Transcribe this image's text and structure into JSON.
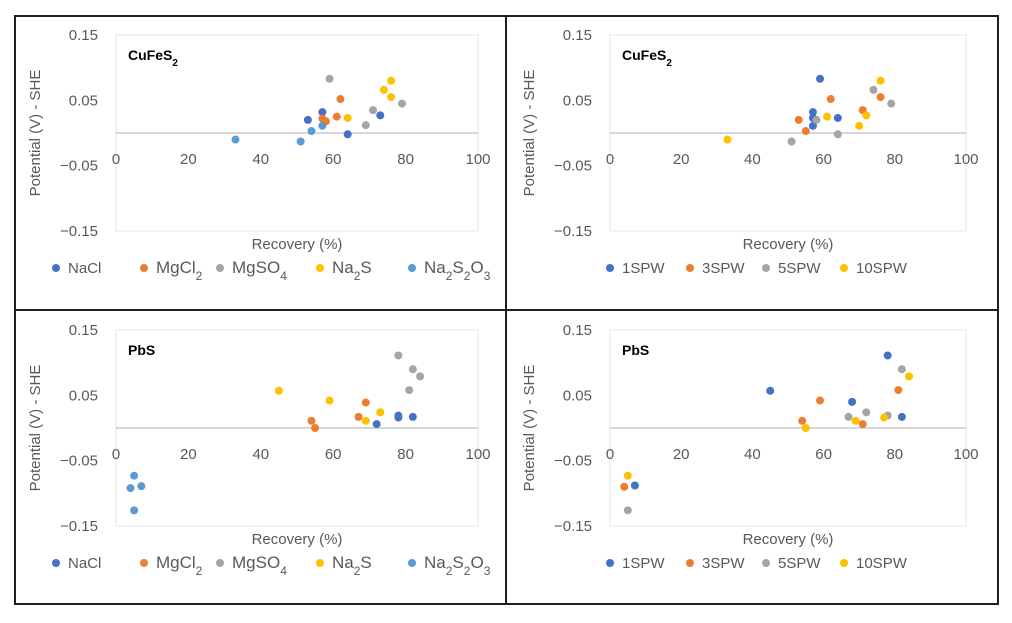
{
  "series_colors": {
    "NaCl": "#4472C4",
    "MgCl2": "#ED7D31",
    "MgSO4": "#A5A5A5",
    "Na2S": "#FFC000",
    "Na2S2O3": "#5B9BD5",
    "1SPW": "#4472C4",
    "3SPW": "#ED7D31",
    "5SPW": "#A5A5A5",
    "10SPW": "#FFC000"
  },
  "chart_data": [
    {
      "type": "scatter",
      "title": "CuFeS2",
      "xlabel": "Recovery (%)",
      "ylabel": "Potential (V) - SHE",
      "xlim": [
        0,
        100
      ],
      "ylim": [
        -0.15,
        0.15
      ],
      "xticks": [
        "0",
        "20",
        "40",
        "60",
        "80",
        "100"
      ],
      "yticks": [
        "0.15",
        "0.05",
        "-0.05",
        "-0.15"
      ],
      "grid": false,
      "legend": "bottom",
      "series": [
        {
          "name": "NaCl",
          "points": [
            [
              53,
              0.02
            ],
            [
              57,
              0.032
            ],
            [
              64,
              -0.002
            ],
            [
              73,
              0.027
            ]
          ]
        },
        {
          "name": "MgCl2",
          "points": [
            [
              57,
              0.022
            ],
            [
              58,
              0.018
            ],
            [
              61,
              0.025
            ],
            [
              62,
              0.052
            ]
          ]
        },
        {
          "name": "MgSO4",
          "points": [
            [
              59,
              0.083
            ],
            [
              69,
              0.012
            ],
            [
              71,
              0.035
            ],
            [
              79,
              0.045
            ]
          ]
        },
        {
          "name": "Na2S",
          "points": [
            [
              64,
              0.023
            ],
            [
              74,
              0.066
            ],
            [
              76,
              0.08
            ],
            [
              76,
              0.055
            ]
          ]
        },
        {
          "name": "Na2S2O3",
          "points": [
            [
              33,
              -0.01
            ],
            [
              51,
              -0.013
            ],
            [
              54,
              0.003
            ],
            [
              57,
              0.011
            ]
          ]
        }
      ]
    },
    {
      "type": "scatter",
      "title": "CuFeS2",
      "xlabel": "Recovery (%)",
      "ylabel": "Potential (V) - SHE",
      "xlim": [
        0,
        100
      ],
      "ylim": [
        -0.15,
        0.15
      ],
      "xticks": [
        "0",
        "20",
        "40",
        "60",
        "80",
        "100"
      ],
      "yticks": [
        "0.15",
        "0.05",
        "-0.05",
        "-0.15"
      ],
      "grid": false,
      "legend": "bottom",
      "series": [
        {
          "name": "1SPW",
          "points": [
            [
              57,
              0.032
            ],
            [
              57,
              0.023
            ],
            [
              57,
              0.011
            ],
            [
              59,
              0.083
            ],
            [
              64,
              0.023
            ]
          ]
        },
        {
          "name": "3SPW",
          "points": [
            [
              53,
              0.02
            ],
            [
              55,
              0.003
            ],
            [
              62,
              0.052
            ],
            [
              71,
              0.035
            ],
            [
              76,
              0.055
            ]
          ]
        },
        {
          "name": "5SPW",
          "points": [
            [
              51,
              -0.013
            ],
            [
              58,
              0.02
            ],
            [
              64,
              -0.002
            ],
            [
              74,
              0.066
            ],
            [
              79,
              0.045
            ]
          ]
        },
        {
          "name": "10SPW",
          "points": [
            [
              33,
              -0.01
            ],
            [
              61,
              0.025
            ],
            [
              70,
              0.011
            ],
            [
              72,
              0.027
            ],
            [
              76,
              0.08
            ]
          ]
        }
      ]
    },
    {
      "type": "scatter",
      "title": "PbS",
      "xlabel": "Recovery (%)",
      "ylabel": "Potential (V) - SHE",
      "xlim": [
        0,
        100
      ],
      "ylim": [
        -0.15,
        0.15
      ],
      "xticks": [
        "0",
        "20",
        "40",
        "60",
        "80",
        "100"
      ],
      "yticks": [
        "0.15",
        "0.05",
        "-0.05",
        "-0.15"
      ],
      "grid": false,
      "legend": "bottom",
      "series": [
        {
          "name": "NaCl",
          "points": [
            [
              72,
              0.006
            ],
            [
              78,
              0.016
            ],
            [
              78,
              0.019
            ],
            [
              82,
              0.017
            ]
          ]
        },
        {
          "name": "MgCl2",
          "points": [
            [
              54,
              0.011
            ],
            [
              55,
              0.0
            ],
            [
              67,
              0.017
            ],
            [
              69,
              0.039
            ]
          ]
        },
        {
          "name": "MgSO4",
          "points": [
            [
              78,
              0.111
            ],
            [
              81,
              0.058
            ],
            [
              82,
              0.09
            ],
            [
              84,
              0.079
            ]
          ]
        },
        {
          "name": "Na2S",
          "points": [
            [
              45,
              0.057
            ],
            [
              59,
              0.042
            ],
            [
              69,
              0.011
            ],
            [
              73,
              0.024
            ]
          ]
        },
        {
          "name": "Na2S2O3",
          "points": [
            [
              4,
              -0.092
            ],
            [
              5,
              -0.073
            ],
            [
              5,
              -0.126
            ],
            [
              7,
              -0.089
            ]
          ]
        }
      ]
    },
    {
      "type": "scatter",
      "title": "PbS",
      "xlabel": "Recovery (%)",
      "ylabel": "Potential (V) - SHE",
      "xlim": [
        0,
        100
      ],
      "ylim": [
        -0.15,
        0.15
      ],
      "xticks": [
        "0",
        "20",
        "40",
        "60",
        "80",
        "100"
      ],
      "yticks": [
        "0.15",
        "0.05",
        "-0.05",
        "-0.15"
      ],
      "grid": false,
      "legend": "bottom",
      "series": [
        {
          "name": "1SPW",
          "points": [
            [
              7,
              -0.088
            ],
            [
              45,
              0.057
            ],
            [
              68,
              0.04
            ],
            [
              78,
              0.111
            ],
            [
              82,
              0.017
            ]
          ]
        },
        {
          "name": "3SPW",
          "points": [
            [
              4,
              -0.09
            ],
            [
              54,
              0.011
            ],
            [
              59,
              0.042
            ],
            [
              71,
              0.006
            ],
            [
              81,
              0.058
            ]
          ]
        },
        {
          "name": "5SPW",
          "points": [
            [
              5,
              -0.126
            ],
            [
              67,
              0.017
            ],
            [
              72,
              0.024
            ],
            [
              78,
              0.019
            ],
            [
              82,
              0.09
            ]
          ]
        },
        {
          "name": "10SPW",
          "points": [
            [
              5,
              -0.073
            ],
            [
              55,
              0.0
            ],
            [
              69,
              0.011
            ],
            [
              77,
              0.016
            ],
            [
              84,
              0.079
            ]
          ]
        }
      ]
    }
  ]
}
